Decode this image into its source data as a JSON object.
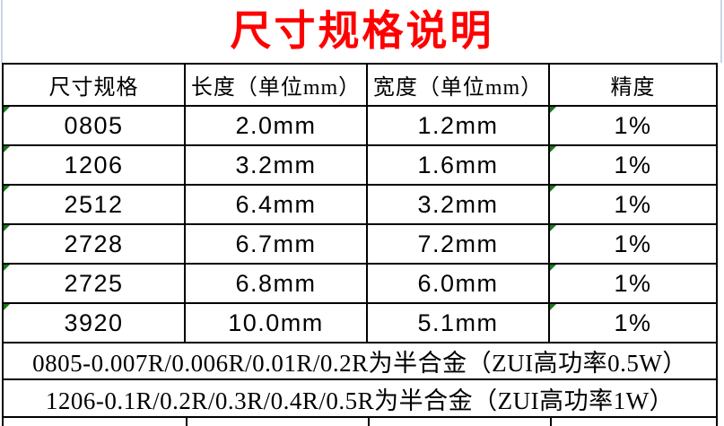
{
  "title": "尺寸规格说明",
  "table": {
    "headers": [
      "尺寸规格",
      "长度（单位mm）",
      "宽度（单位mm）",
      "精度"
    ],
    "rows": [
      [
        "0805",
        "2.0mm",
        "1.2mm",
        "1%"
      ],
      [
        "1206",
        "3.2mm",
        "1.6mm",
        "1%"
      ],
      [
        "2512",
        "6.4mm",
        "3.2mm",
        "1%"
      ],
      [
        "2728",
        "6.7mm",
        "7.2mm",
        "1%"
      ],
      [
        "2725",
        "6.8mm",
        "6.0mm",
        "1%"
      ],
      [
        "3920",
        "10.0mm",
        "5.1mm",
        "1%"
      ]
    ],
    "notes": [
      "0805-0.007R/0.006R/0.01R/0.2R为半合金（ZUI高功率0.5W）",
      "1206-0.1R/0.2R/0.3R/0.4R/0.5R为半合金（ZUI高功率1W）"
    ]
  },
  "icons": {
    "error_indicator": "green-corner-triangle"
  },
  "colors": {
    "title_red": "#ff0000",
    "border_black": "#000000",
    "gridline_blue": "#ccd5e2",
    "error_triangle_green": "#1a7a1a"
  }
}
